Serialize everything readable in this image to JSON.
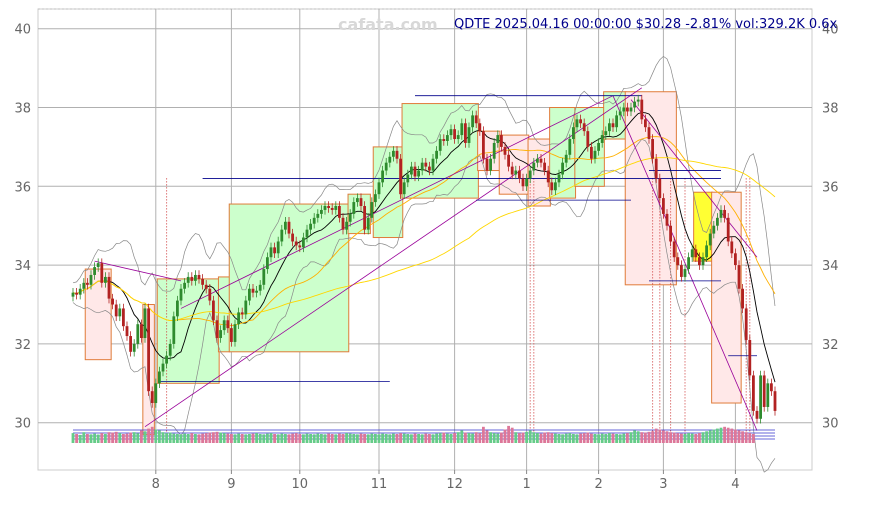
{
  "watermark": "cafata.com",
  "header_text": "QDTE 2025.04.16 00:00:00 $30.28 -2.81% vol:329.2K 0.6x",
  "colors": {
    "up": "#2e8b2e",
    "down": "#b22222",
    "box_up_fill": "#ccffcc",
    "box_down_fill": "#ffe8e8",
    "box_border": "#e07b39",
    "box_highlight": "#ffff33",
    "ma_short": "#000000",
    "ma_mid": "#ffb000",
    "ma_long": "#ffd700",
    "band": "#888888",
    "trend": "#990099",
    "level": "#00008b"
  },
  "chart_data": {
    "type": "candlestick",
    "symbol": "QDTE",
    "date": "2025.04.16 00:00:00",
    "last_price": 30.28,
    "change_pct": -2.81,
    "volume": "329.2K",
    "volume_ratio": "0.6x",
    "ylim": [
      28.8,
      40.5
    ],
    "y_ticks": [
      30,
      32,
      34,
      36,
      38,
      40
    ],
    "x_tick_labels": [
      "8",
      "9",
      "10",
      "11",
      "12",
      "1",
      "2",
      "3",
      "4"
    ],
    "x_tick_index": [
      23,
      44,
      63,
      85,
      106,
      126,
      146,
      164,
      184
    ],
    "grid": true,
    "close": [
      33.3,
      33.25,
      33.4,
      33.55,
      33.5,
      33.75,
      33.95,
      34.05,
      33.55,
      33.7,
      33.15,
      33.0,
      32.7,
      32.9,
      32.45,
      32.2,
      31.8,
      32.0,
      32.5,
      32.15,
      32.9,
      30.8,
      30.5,
      31.0,
      31.3,
      31.5,
      31.7,
      32.0,
      32.7,
      33.1,
      33.4,
      33.55,
      33.7,
      33.6,
      33.75,
      33.65,
      33.5,
      33.4,
      33.1,
      32.6,
      32.15,
      32.35,
      32.6,
      32.4,
      32.05,
      32.5,
      32.8,
      32.75,
      33.1,
      33.4,
      33.3,
      33.35,
      33.5,
      33.9,
      34.2,
      34.45,
      34.3,
      34.6,
      34.9,
      35.1,
      34.8,
      34.6,
      34.5,
      34.45,
      34.7,
      34.9,
      35.05,
      35.2,
      35.3,
      35.4,
      35.5,
      35.45,
      35.4,
      35.5,
      35.2,
      34.9,
      35.1,
      35.3,
      35.6,
      35.7,
      35.5,
      34.9,
      35.2,
      35.6,
      35.8,
      36.1,
      36.4,
      36.6,
      36.75,
      36.9,
      36.7,
      35.8,
      36.1,
      36.3,
      36.5,
      36.25,
      36.4,
      36.6,
      36.5,
      36.4,
      36.7,
      36.9,
      37.2,
      37.15,
      37.3,
      37.45,
      37.2,
      37.3,
      37.6,
      37.1,
      37.5,
      37.8,
      37.6,
      37.4,
      36.7,
      36.4,
      36.7,
      37.1,
      37.3,
      37.0,
      36.8,
      36.5,
      36.3,
      36.4,
      36.2,
      36.0,
      36.2,
      36.4,
      36.6,
      36.7,
      36.6,
      36.4,
      36.1,
      35.9,
      36.1,
      36.3,
      36.6,
      36.8,
      37.2,
      37.5,
      37.7,
      37.6,
      37.4,
      37.0,
      36.7,
      36.9,
      37.1,
      37.3,
      37.4,
      37.6,
      37.5,
      37.8,
      37.9,
      38.0,
      37.9,
      38.0,
      38.15,
      38.2,
      37.7,
      37.5,
      37.2,
      36.7,
      36.2,
      35.7,
      35.3,
      35.0,
      34.6,
      34.2,
      34.0,
      33.7,
      33.9,
      34.2,
      34.4,
      34.2,
      34.0,
      34.2,
      34.5,
      34.8,
      35.0,
      35.2,
      35.4,
      35.2,
      34.6,
      34.3,
      34.0,
      33.4,
      32.9,
      32.1,
      31.2,
      30.3,
      30.1,
      31.2,
      30.4,
      31.0,
      30.8,
      30.3
    ],
    "volume_series": [
      55,
      50,
      45,
      60,
      50,
      48,
      52,
      47,
      55,
      50,
      60,
      58,
      62,
      55,
      50,
      52,
      58,
      60,
      54,
      70,
      65,
      80,
      90,
      75,
      70,
      60,
      55,
      58,
      52,
      50,
      48,
      52,
      50,
      55,
      50,
      48,
      52,
      55,
      58,
      60,
      62,
      58,
      55,
      52,
      50,
      48,
      52,
      50,
      48,
      50,
      52,
      55,
      50,
      48,
      52,
      55,
      50,
      48,
      52,
      50,
      48,
      52,
      55,
      50,
      48,
      52,
      50,
      48,
      52,
      50,
      48,
      52,
      50,
      48,
      52,
      50,
      55,
      52,
      50,
      48,
      52,
      50,
      48,
      52,
      50,
      48,
      52,
      50,
      48,
      52,
      50,
      55,
      52,
      50,
      48,
      52,
      50,
      48,
      52,
      50,
      48,
      52,
      55,
      58,
      52,
      50,
      55,
      60,
      70,
      58,
      55,
      52,
      60,
      55,
      90,
      70,
      60,
      55,
      52,
      58,
      75,
      95,
      85,
      60,
      55,
      58,
      62,
      70,
      60,
      55,
      52,
      58,
      60,
      55,
      52,
      50,
      48,
      52,
      55,
      50,
      48,
      52,
      55,
      58,
      52,
      50,
      48,
      52,
      50,
      55,
      52,
      50,
      48,
      52,
      55,
      60,
      70,
      65,
      60,
      58,
      62,
      65,
      80,
      75,
      70,
      65,
      60,
      58,
      55,
      52,
      50,
      55,
      52,
      50,
      55,
      60,
      65,
      70,
      75,
      80,
      85,
      90,
      85,
      80,
      75,
      70,
      65,
      60,
      55,
      50
    ],
    "boxes": [
      {
        "from": 4,
        "to": 10,
        "low": 31.6,
        "high": 33.9,
        "kind": "down"
      },
      {
        "from": 20,
        "to": 22,
        "low": 29.7,
        "high": 33.0,
        "kind": "down"
      },
      {
        "from": 24,
        "to": 40,
        "low": 31.0,
        "high": 33.65,
        "kind": "up"
      },
      {
        "from": 41,
        "to": 43,
        "low": 31.8,
        "high": 33.7,
        "kind": "up"
      },
      {
        "from": 44,
        "to": 76,
        "low": 31.8,
        "high": 35.55,
        "kind": "up"
      },
      {
        "from": 77,
        "to": 82,
        "low": 34.8,
        "high": 35.8,
        "kind": "up"
      },
      {
        "from": 84,
        "to": 91,
        "low": 34.7,
        "high": 37.0,
        "kind": "up"
      },
      {
        "from": 92,
        "to": 112,
        "low": 35.7,
        "high": 38.1,
        "kind": "up"
      },
      {
        "from": 113,
        "to": 118,
        "low": 36.4,
        "high": 37.4,
        "kind": "down"
      },
      {
        "from": 119,
        "to": 126,
        "low": 35.8,
        "high": 37.3,
        "kind": "down"
      },
      {
        "from": 127,
        "to": 132,
        "low": 35.5,
        "high": 37.2,
        "kind": "down"
      },
      {
        "from": 133,
        "to": 139,
        "low": 35.7,
        "high": 38.0,
        "kind": "up"
      },
      {
        "from": 140,
        "to": 147,
        "low": 36.0,
        "high": 38.0,
        "kind": "up"
      },
      {
        "from": 148,
        "to": 153,
        "low": 37.2,
        "high": 38.4,
        "kind": "up"
      },
      {
        "from": 154,
        "to": 167,
        "low": 33.5,
        "high": 38.4,
        "kind": "down"
      },
      {
        "from": 173,
        "to": 177,
        "low": 34.1,
        "high": 35.85,
        "kind": "highlight"
      },
      {
        "from": 178,
        "to": 185,
        "low": 30.5,
        "high": 35.85,
        "kind": "down"
      }
    ],
    "trend_lines": [
      {
        "i0": 20,
        "y0": 29.9,
        "i1": 158,
        "y1": 38.5
      },
      {
        "i0": 30,
        "y0": 32.9,
        "i1": 150,
        "y1": 38.3
      },
      {
        "i0": 6,
        "y0": 34.1,
        "i1": 30,
        "y1": 33.6
      },
      {
        "i0": 150,
        "y0": 38.3,
        "i1": 190,
        "y1": 29.8
      },
      {
        "i0": 155,
        "y0": 38.2,
        "i1": 190,
        "y1": 34.2
      }
    ],
    "level_lines": [
      {
        "i0": 95,
        "i1": 158,
        "y": 38.3
      },
      {
        "i0": 36,
        "i1": 180,
        "y": 36.2
      },
      {
        "i0": 112,
        "i1": 155,
        "y": 35.65
      },
      {
        "i0": 24,
        "i1": 88,
        "y": 31.05
      },
      {
        "i0": 160,
        "i1": 180,
        "y": 36.4
      },
      {
        "i0": 160,
        "i1": 180,
        "y": 33.6
      },
      {
        "i0": 182,
        "i1": 190,
        "y": 31.7
      }
    ],
    "event_markers": [
      26,
      127,
      128,
      161,
      163,
      166,
      170,
      187,
      188
    ]
  }
}
